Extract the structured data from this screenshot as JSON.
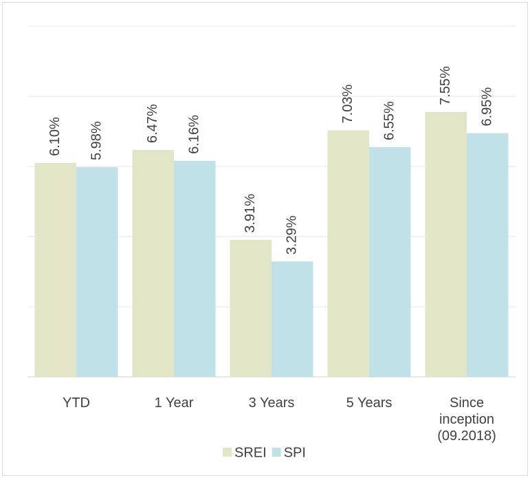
{
  "chart_data": {
    "type": "bar",
    "categories": [
      "YTD",
      "1 Year",
      "3 Years",
      "5 Years",
      "Since inception (09.2018)"
    ],
    "series": [
      {
        "name": "SREI",
        "color": "#e2e5c6",
        "values": [
          6.1,
          6.47,
          3.91,
          7.03,
          7.55
        ],
        "value_labels": [
          "6.10%",
          "6.47%",
          "3.91%",
          "7.03%",
          "7.55%"
        ]
      },
      {
        "name": "SPI",
        "color": "#c0e1e7",
        "values": [
          5.98,
          6.16,
          3.29,
          6.55,
          6.95
        ],
        "value_labels": [
          "5.98%",
          "6.16%",
          "3.29%",
          "6.55%",
          "6.95%"
        ]
      }
    ],
    "ylim": [
      0,
      10
    ],
    "yticks": [
      0,
      2,
      4,
      6,
      8,
      10
    ],
    "grid": true,
    "legend": "bottom"
  }
}
